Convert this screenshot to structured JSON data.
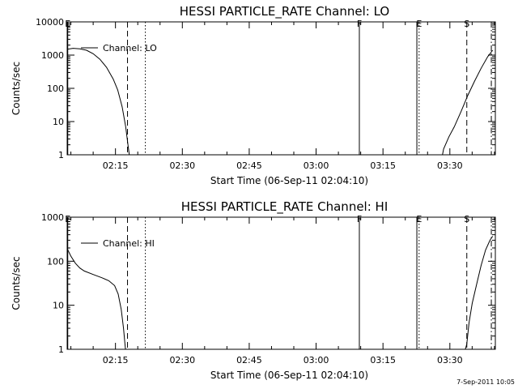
{
  "timestamp": "7-Sep-2011 10:05",
  "x_tick_labels": [
    "02:15",
    "02:30",
    "02:45",
    "03:00",
    "03:15",
    "03:30"
  ],
  "chart_data": [
    {
      "type": "line",
      "title": "HESSI PARTICLE_RATE Channel: LO",
      "xlabel": "Start Time (06-Sep-11 02:04:10)",
      "ylabel": "Counts/sec",
      "y_scale": "log",
      "ylim": [
        1,
        10000
      ],
      "x_unit": "minutes",
      "xlim": [
        4.17,
        100.2
      ],
      "xticks": [
        15,
        30,
        45,
        60,
        75,
        90
      ],
      "yticks": [
        1,
        10,
        100,
        1000,
        10000
      ],
      "ytick_labels": [
        "1",
        "10",
        "100",
        "1000",
        "10000"
      ],
      "legend": {
        "label": "Channel: LO",
        "position": "top-left"
      },
      "series": [
        {
          "name": "Channel: LO",
          "segments": [
            [
              [
                4.2,
                1500
              ],
              [
                5.5,
                1600
              ],
              [
                7,
                1550
              ],
              [
                8.5,
                1400
              ],
              [
                10,
                1100
              ],
              [
                11.5,
                750
              ],
              [
                13,
                430
              ],
              [
                14.5,
                190
              ],
              [
                15.5,
                90
              ],
              [
                16.5,
                28
              ],
              [
                17.3,
                7
              ],
              [
                17.8,
                2
              ],
              [
                18.2,
                0.8
              ]
            ],
            [
              [
                88.2,
                0.8
              ],
              [
                88.6,
                1.5
              ],
              [
                89.8,
                3.5
              ],
              [
                91,
                7
              ],
              [
                92.5,
                20
              ],
              [
                94,
                60
              ],
              [
                95.5,
                160
              ],
              [
                97,
                400
              ],
              [
                98.5,
                900
              ],
              [
                99.6,
                1400
              ]
            ]
          ]
        }
      ],
      "markers": [
        {
          "label": "E",
          "x": 4.3,
          "style": "solid"
        },
        {
          "x": 17.7,
          "style": "dashed"
        },
        {
          "x": 21.7,
          "style": "dotted"
        },
        {
          "label": "F",
          "x": 69.7,
          "style": "solid"
        },
        {
          "x": 82.6,
          "style": "solid"
        },
        {
          "label": "E",
          "x": 83.1,
          "style": "dotted"
        },
        {
          "label": "S",
          "x": 93.8,
          "style": "dashed"
        },
        {
          "x": 99.3,
          "style": "dashdot"
        }
      ]
    },
    {
      "type": "line",
      "title": "HESSI PARTICLE_RATE Channel: HI",
      "xlabel": "Start Time (06-Sep-11 02:04:10)",
      "ylabel": "Counts/sec",
      "y_scale": "log",
      "ylim": [
        1,
        1000
      ],
      "x_unit": "minutes",
      "xlim": [
        4.17,
        100.2
      ],
      "xticks": [
        15,
        30,
        45,
        60,
        75,
        90
      ],
      "yticks": [
        1,
        10,
        100,
        1000
      ],
      "ytick_labels": [
        "1",
        "10",
        "100",
        "1000"
      ],
      "legend": {
        "label": "Channel: HI",
        "position": "top-left"
      },
      "series": [
        {
          "name": "Channel: HI",
          "segments": [
            [
              [
                4.2,
                190
              ],
              [
                5,
                130
              ],
              [
                6,
                90
              ],
              [
                7,
                70
              ],
              [
                8,
                60
              ],
              [
                10,
                50
              ],
              [
                12,
                42
              ],
              [
                13.5,
                36
              ],
              [
                14.8,
                28
              ],
              [
                15.6,
                18
              ],
              [
                16.3,
                8
              ],
              [
                16.8,
                3
              ],
              [
                17.2,
                1.1
              ],
              [
                17.4,
                0.8
              ]
            ],
            [
              [
                93.2,
                0.8
              ],
              [
                93.8,
                1.3
              ],
              [
                94.3,
                4
              ],
              [
                95,
                11
              ],
              [
                96,
                30
              ],
              [
                97,
                80
              ],
              [
                98,
                180
              ],
              [
                99,
                300
              ],
              [
                99.6,
                370
              ]
            ]
          ]
        }
      ],
      "markers": [
        {
          "label": "E",
          "x": 4.3,
          "style": "solid"
        },
        {
          "x": 17.7,
          "style": "dashed"
        },
        {
          "x": 21.7,
          "style": "dotted"
        },
        {
          "label": "F",
          "x": 69.7,
          "style": "solid"
        },
        {
          "x": 82.6,
          "style": "solid"
        },
        {
          "label": "E",
          "x": 83.1,
          "style": "dotted"
        },
        {
          "label": "S",
          "x": 93.8,
          "style": "dashed"
        },
        {
          "x": 99.3,
          "style": "dashdot"
        }
      ]
    }
  ]
}
